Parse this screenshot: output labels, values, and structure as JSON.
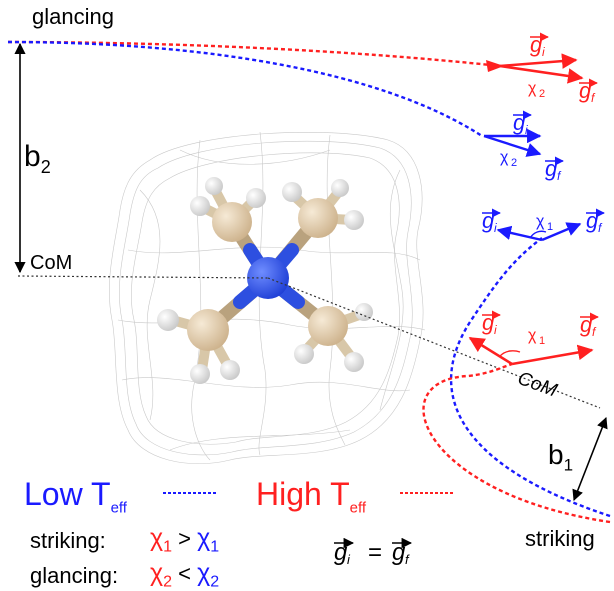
{
  "labels": {
    "glancing_top": "glancing",
    "b2": "b",
    "b2_sub": "2",
    "com_left": "CoM",
    "com_right": "CoM",
    "b1": "b",
    "b1_sub": "1",
    "striking_right": "striking"
  },
  "legend": {
    "low": "Low T",
    "low_sub": "eff",
    "high": "High T",
    "high_sub": "eff",
    "low_color": "#1a1aff",
    "high_color": "#ff2020"
  },
  "conditions": {
    "striking_label": "striking:",
    "striking_left": "χ",
    "striking_left_sub": "1",
    "striking_op": ">",
    "striking_right": "χ",
    "striking_right_sub": "1",
    "glancing_label": "glancing:",
    "glancing_left": "χ",
    "glancing_left_sub": "2",
    "glancing_op": "<",
    "glancing_right": "χ",
    "glancing_right_sub": "2"
  },
  "vectors": {
    "g": "g",
    "i": "i",
    "f": "f",
    "equals": "=",
    "chi1": "χ",
    "chi1_sub": "1",
    "chi2": "χ",
    "chi2_sub": "2"
  }
}
